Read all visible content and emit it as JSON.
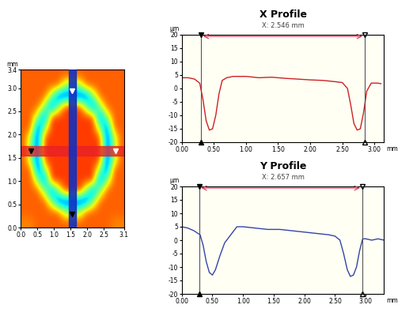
{
  "chart_data": [
    {
      "type": "heatmap",
      "ylabel": "mm",
      "xlim": [
        0,
        3.1
      ],
      "ylim": [
        0,
        3.4
      ],
      "xticks": [
        {
          "value": 0,
          "label": "0.0"
        },
        0.5,
        {
          "value": 1,
          "label": "1.0"
        },
        1.5,
        {
          "value": 2,
          "label": "2.0"
        },
        2.5,
        3.1
      ],
      "yticks": [
        {
          "value": 0,
          "label": "0.0"
        },
        0.5,
        {
          "value": 1,
          "label": "1.0"
        },
        1.5,
        {
          "value": 2,
          "label": "2.0"
        },
        2.5,
        {
          "value": 3,
          "label": "3.0"
        },
        3.4
      ],
      "color_range": [
        -18,
        8
      ],
      "cells": [
        [
          2,
          2,
          3,
          3,
          3,
          3,
          3,
          3,
          3,
          3,
          3,
          3,
          3,
          2,
          2
        ],
        [
          3,
          3,
          3,
          3,
          3,
          3,
          -4,
          -4,
          -4,
          3,
          3,
          3,
          3,
          3,
          3
        ],
        [
          3,
          3,
          3,
          3,
          -4,
          -14,
          -14,
          -14,
          -14,
          -14,
          -4,
          3,
          3,
          3,
          3
        ],
        [
          3,
          3,
          3,
          -4,
          -14,
          -4,
          4,
          4,
          4,
          -4,
          -14,
          -4,
          3,
          3,
          3
        ],
        [
          3,
          3,
          -4,
          -14,
          4,
          4,
          4,
          4,
          4,
          4,
          4,
          -14,
          -4,
          3,
          3
        ],
        [
          3,
          3,
          -14,
          -4,
          4,
          4,
          4,
          4,
          4,
          4,
          4,
          -4,
          -14,
          3,
          3
        ],
        [
          3,
          -4,
          -14,
          4,
          4,
          4,
          4,
          4,
          4,
          4,
          4,
          4,
          -14,
          -4,
          3
        ],
        [
          3,
          -4,
          -14,
          4,
          4,
          4,
          4,
          4,
          4,
          4,
          4,
          4,
          -14,
          -4,
          3
        ],
        [
          3,
          -4,
          -14,
          4,
          4,
          4,
          4,
          4,
          4,
          4,
          4,
          4,
          -14,
          -4,
          3
        ],
        [
          3,
          3,
          -14,
          -4,
          4,
          4,
          4,
          4,
          4,
          4,
          4,
          -4,
          -14,
          3,
          3
        ],
        [
          3,
          3,
          -4,
          -14,
          4,
          4,
          4,
          4,
          4,
          4,
          4,
          -14,
          -4,
          3,
          3
        ],
        [
          3,
          3,
          3,
          -4,
          -14,
          -4,
          4,
          4,
          4,
          -4,
          -14,
          -4,
          3,
          3,
          3
        ],
        [
          3,
          3,
          3,
          3,
          -4,
          -14,
          -14,
          -14,
          -14,
          -14,
          -4,
          3,
          3,
          3,
          3
        ],
        [
          3,
          3,
          3,
          3,
          3,
          3,
          -4,
          -4,
          -4,
          3,
          3,
          3,
          3,
          3,
          3
        ],
        [
          3,
          3,
          3,
          3,
          3,
          3,
          3,
          3,
          3,
          3,
          3,
          3,
          3,
          3,
          3
        ]
      ],
      "x_profile_band": [
        1.55,
        1.75
      ],
      "y_profile_band": [
        1.45,
        1.65
      ],
      "x_cursors": [
        0.3,
        2.846
      ],
      "y_cursors": [
        0.283,
        2.94
      ]
    },
    {
      "type": "line",
      "title": "X Profile",
      "subtitle": "X: 2.546 mm",
      "ylabel": "µm",
      "xlabel": "mm",
      "xlim": [
        0,
        3.15
      ],
      "ylim": [
        -20,
        20
      ],
      "xticks": [
        {
          "value": 0,
          "label": "0.00"
        },
        {
          "value": 0.5,
          "label": "0.50"
        },
        {
          "value": 1,
          "label": "1.00"
        },
        {
          "value": 1.5,
          "label": "1.50"
        },
        {
          "value": 2,
          "label": "2.00"
        },
        {
          "value": 2.5,
          "label": "2.50"
        },
        {
          "value": 3,
          "label": "3.00"
        }
      ],
      "yticks": [
        -20,
        -15,
        -10,
        -5,
        0,
        5,
        10,
        15,
        20
      ],
      "cursors": [
        0.3,
        2.846
      ],
      "color": "#cc2222",
      "x": [
        0.0,
        0.1,
        0.2,
        0.28,
        0.33,
        0.38,
        0.43,
        0.48,
        0.53,
        0.58,
        0.63,
        0.7,
        0.8,
        1.0,
        1.2,
        1.4,
        1.6,
        1.8,
        2.0,
        2.2,
        2.4,
        2.5,
        2.58,
        2.63,
        2.68,
        2.73,
        2.78,
        2.83,
        2.88,
        2.95,
        3.05,
        3.1
      ],
      "values": [
        4,
        4,
        3.5,
        2,
        -4,
        -12,
        -15.5,
        -15,
        -10,
        -2,
        3,
        4,
        4.5,
        4.5,
        4,
        4.2,
        3.8,
        3.5,
        3.2,
        3,
        2.5,
        2.2,
        0,
        -6,
        -13,
        -15.5,
        -15,
        -9,
        -1,
        2,
        2,
        1.8
      ]
    },
    {
      "type": "line",
      "title": "Y Profile",
      "subtitle": "X: 2.657 mm",
      "ylabel": "µm",
      "xlabel": "mm",
      "xlim": [
        0,
        3.3
      ],
      "ylim": [
        -20,
        20
      ],
      "xticks": [
        {
          "value": 0,
          "label": "0.00"
        },
        {
          "value": 0.5,
          "label": "0.50"
        },
        {
          "value": 1,
          "label": "1.00"
        },
        {
          "value": 1.5,
          "label": "1.50"
        },
        {
          "value": 2,
          "label": "2.00"
        },
        {
          "value": 2.5,
          "label": "2.50"
        },
        {
          "value": 3,
          "label": "3.00"
        }
      ],
      "yticks": [
        -20,
        -15,
        -10,
        -5,
        0,
        5,
        10,
        15,
        20
      ],
      "cursors": [
        0.283,
        2.94
      ],
      "color": "#3344aa",
      "x": [
        0,
        0.1,
        0.2,
        0.3,
        0.35,
        0.4,
        0.45,
        0.5,
        0.55,
        0.62,
        0.7,
        0.8,
        0.9,
        1.0,
        1.2,
        1.4,
        1.6,
        1.8,
        2.0,
        2.2,
        2.4,
        2.5,
        2.58,
        2.64,
        2.7,
        2.75,
        2.8,
        2.85,
        2.9,
        2.95,
        3.0,
        3.1,
        3.2,
        3.3
      ],
      "values": [
        5,
        4.5,
        3.5,
        2,
        -2,
        -8,
        -12,
        -13,
        -11,
        -6,
        -1,
        2,
        5,
        5,
        4.5,
        4,
        4,
        3.5,
        3,
        2.5,
        2,
        1.5,
        0,
        -5,
        -11,
        -13.5,
        -13,
        -10,
        -4,
        0.5,
        0.5,
        0,
        0.5,
        0
      ]
    }
  ]
}
